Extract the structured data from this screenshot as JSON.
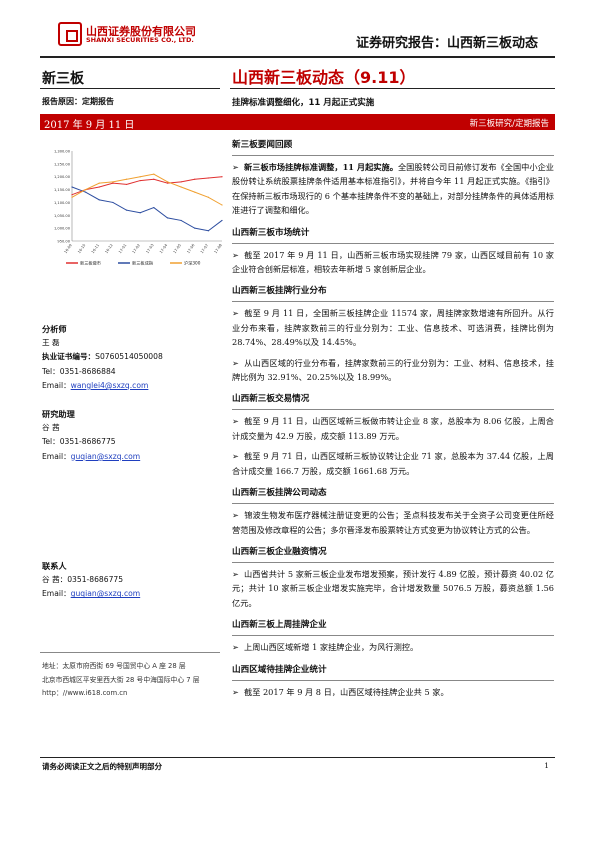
{
  "header": {
    "logo_cn": "山西证券股份有限公司",
    "logo_en": "SHANXI SECURITIES CO., LTD.",
    "title": "证券研究报告：山西新三板动态"
  },
  "left": {
    "board": "新三板",
    "report_reason": "报告原因：定期报告",
    "date": "2017 年 9 月 11 日"
  },
  "right_head": {
    "title": "山西新三板动态（9.11）",
    "subtitle": "挂牌标准调整细化，11 月起正式实施",
    "category": "新三板研究/定期报告"
  },
  "chart_data": {
    "type": "line",
    "x": [
      "16-09",
      "16-10",
      "16-11",
      "16-12",
      "17-01",
      "17-02",
      "17-03",
      "17-04",
      "17-05",
      "17-06",
      "17-07",
      "17-08"
    ],
    "yticks": [
      "1,300.00",
      "1,250.00",
      "1,200.00",
      "1,150.00",
      "1,100.00",
      "1,050.00",
      "1,000.00",
      "950.00"
    ],
    "ylim": [
      950,
      1300
    ],
    "series": [
      {
        "name": "新三板做市",
        "color": "#e03030",
        "values": [
          1130,
          1150,
          1160,
          1175,
          1170,
          1185,
          1190,
          1175,
          1180,
          1190,
          1195,
          1200
        ]
      },
      {
        "name": "新三板成指",
        "color": "#2c4da0",
        "values": [
          1160,
          1140,
          1110,
          1100,
          1070,
          1060,
          1080,
          1040,
          1030,
          1000,
          990,
          1030
        ]
      },
      {
        "name": "沪深300",
        "color": "#f0a030",
        "values": [
          1120,
          1150,
          1175,
          1180,
          1190,
          1200,
          1210,
          1180,
          1160,
          1140,
          1120,
          1090
        ]
      }
    ]
  },
  "analyst": {
    "label": "分析师",
    "name": "王 磊",
    "cert_label": "执业证书编号：",
    "cert": "S0760514050008",
    "tel": "Tel：0351-8686884",
    "email_label": "Email：",
    "email": "wanglei4@sxzq.com"
  },
  "assistant": {
    "label": "研究助理",
    "name": "谷 茜",
    "tel": "Tel：0351-8686775",
    "email_label": "Email：",
    "email": "guqian@sxzq.com"
  },
  "contact": {
    "label": "联系人",
    "name": "谷 茜：0351-8686775",
    "email_label": "Email：",
    "email": "guqian@sxzq.com"
  },
  "address": {
    "line1": "地址：太原市府西街 69 号国贸中心 A 座 28 层",
    "line2": "北京市西城区平安里西大街 28 号中海国际中心 7 层",
    "web": "http：//www.i618.com.cn"
  },
  "sections": [
    {
      "title": "新三板要闻回顾",
      "paras": [
        [
          "➢",
          "新三板市场挂牌标准调整，11 月起实施。",
          "全国股转公司日前修订发布《全国中小企业股份转让系统股票挂牌条件适用基本标准指引》，并将自今年 11 月起正式实施。《指引》在保持新三板市场现行的 6 个基本挂牌条件不变的基础上，对部分挂牌条件的具体适用标准进行了调整和细化。"
        ]
      ]
    },
    {
      "title": "山西新三板市场统计",
      "paras": [
        [
          "➢",
          "",
          "截至 2017 年 9 月 11 日，山西新三板市场实现挂牌 79 家，山西区域目前有 10 家企业符合创新层标准，相较去年新增 5 家创新层企业。"
        ]
      ]
    },
    {
      "title": "山西新三板挂牌行业分布",
      "paras": [
        [
          "➢",
          "",
          "截至 9 月 11 日，全国新三板挂牌企业 11574 家，周挂牌家数增速有所回升。从行业分布来看，挂牌家数前三的行业分别为：工业、信息技术、可选消费，挂牌比例为 28.74%、28.49%以及 14.45%。"
        ],
        [
          "➢",
          "",
          "从山西区域的行业分布看，挂牌家数前三的行业分别为：工业、材料、信息技术，挂牌比例为 32.91%、20.25%以及 18.99%。"
        ]
      ]
    },
    {
      "title": "山西新三板交易情况",
      "paras": [
        [
          "➢",
          "",
          "截至 9 月 11 日，山西区域新三板做市转让企业 8 家，总股本为 8.06 亿股，上周合计成交量为 42.9 万股，成交额 113.89 万元。"
        ],
        [
          "➢",
          "",
          "截至 9 月 71 日，山西区域新三板协议转让企业 71 家，总股本为 37.44 亿股，上周合计成交量 166.7 万股，成交额 1661.68 万元。"
        ]
      ]
    },
    {
      "title": "山西新三板挂牌公司动态",
      "paras": [
        [
          "➢",
          "",
          "锦波生物发布医疗器械注册证变更的公告；圣点科技发布关于全资子公司变更住所经营范围及修改章程的公告；多尔晋泽发布股票转让方式变更为协议转让方式的公告。"
        ]
      ]
    },
    {
      "title": "山西新三板企业融资情况",
      "paras": [
        [
          "➢",
          "",
          "山西省共计 5 家新三板企业发布增发预案，预计发行 4.89 亿股，预计募资 40.02 亿元；共计 10 家新三板企业增发实施完毕，合计增发数量 5076.5 万股，募资总额 1.56 亿元。"
        ]
      ]
    },
    {
      "title": "山西新三板上周挂牌企业",
      "paras": [
        [
          "➢",
          "",
          "上周山西区域新增 1 家挂牌企业，为风行测控。"
        ]
      ]
    },
    {
      "title": "山西区域待挂牌企业统计",
      "paras": [
        [
          "➢",
          "",
          "截至 2017 年 9 月 8 日，山西区域待挂牌企业共 5 家。"
        ]
      ]
    }
  ],
  "footer": {
    "disclaimer": "请务必阅读正文之后的特别声明部分",
    "page": "1"
  }
}
